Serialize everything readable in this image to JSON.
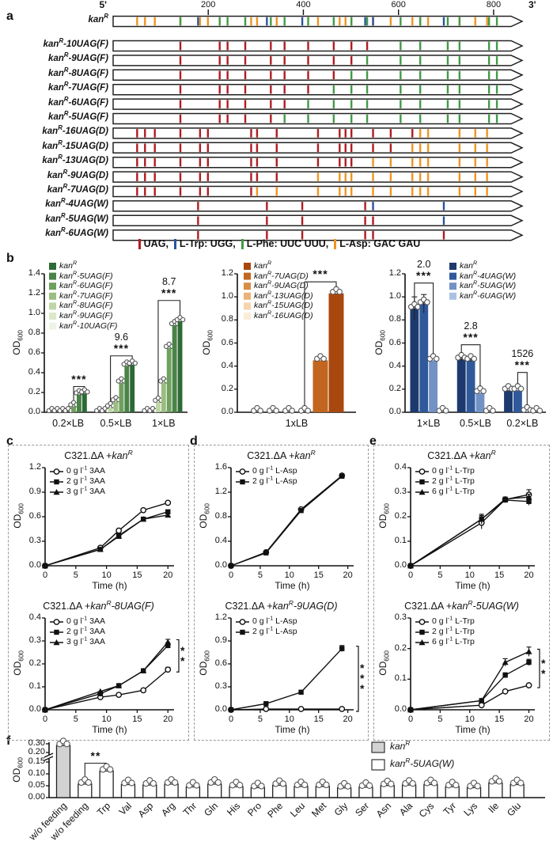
{
  "panels": {
    "a": "a",
    "b": "b",
    "c": "c",
    "d": "d",
    "e": "e",
    "f": "f"
  },
  "panel_a": {
    "ruler": {
      "five_prime": "5'",
      "three_prime": "3'",
      "ticks": [
        200,
        400,
        600,
        800
      ],
      "length": 860
    },
    "legend_separator": ", ",
    "legend": [
      {
        "key": "uag",
        "label": "UAG"
      },
      {
        "key": "trp",
        "label": "L-Trp: UGG"
      },
      {
        "key": "phe",
        "label": "L-Phe: UUC UUU"
      },
      {
        "key": "asp",
        "label": "L-Asp: GAC GAU"
      }
    ],
    "colors": {
      "uag": "#b01b20",
      "trp": "#2a52a2",
      "phe": "#3f9b45",
      "asp": "#f0941f"
    },
    "phe_positions": [
      0.165,
      0.265,
      0.285,
      0.33,
      0.395,
      0.43,
      0.49,
      0.555,
      0.6,
      0.64,
      0.725,
      0.775,
      0.845,
      0.875,
      0.95,
      0.97
    ],
    "asp_positions": [
      0.055,
      0.075,
      0.1,
      0.165,
      0.215,
      0.235,
      0.345,
      0.36,
      0.41,
      0.515,
      0.57,
      0.585,
      0.6,
      0.655,
      0.7,
      0.755,
      0.775,
      0.795,
      0.875,
      0.915,
      0.945
    ],
    "trp_positions": [
      0.21,
      0.385,
      0.475,
      0.635,
      0.655,
      0.835
    ],
    "rows": [
      {
        "label": "*kan^R^*",
        "type": "wt",
        "n": 0
      },
      {
        "label": "*kan^R^-10UAG(F)*",
        "type": "F",
        "n": 10
      },
      {
        "label": "*kan^R^-9UAG(F)*",
        "type": "F",
        "n": 9
      },
      {
        "label": "*kan^R^-8UAG(F)*",
        "type": "F",
        "n": 8
      },
      {
        "label": "*kan^R^-7UAG(F)*",
        "type": "F",
        "n": 7
      },
      {
        "label": "*kan^R^-6UAG(F)*",
        "type": "F",
        "n": 6
      },
      {
        "label": "*kan^R^-5UAG(F)*",
        "type": "F",
        "n": 5
      },
      {
        "label": "*kan^R^-16UAG(D)*",
        "type": "D",
        "n": 16
      },
      {
        "label": "*kan^R^-15UAG(D)*",
        "type": "D",
        "n": 15
      },
      {
        "label": "*kan^R^-13UAG(D)*",
        "type": "D",
        "n": 13
      },
      {
        "label": "*kan^R^-9UAG(D)*",
        "type": "D",
        "n": 9
      },
      {
        "label": "*kan^R^-7UAG(D)*",
        "type": "D",
        "n": 7
      },
      {
        "label": "*kan^R^-4UAG(W)*",
        "type": "W",
        "n": 4
      },
      {
        "label": "*kan^R^-5UAG(W)*",
        "type": "W",
        "n": 5
      },
      {
        "label": "*kan^R^-6UAG(W)*",
        "type": "W",
        "n": 6
      }
    ]
  },
  "chart_data": [
    {
      "id": "b1",
      "type": "bar",
      "ylabel": "OD~600~",
      "yticks": [
        "0.0",
        "0.2",
        "0.4",
        "0.6",
        "0.8",
        "1.0",
        "1.2",
        "1.4"
      ],
      "categories": [
        "0.2×LB",
        "0.5×LB",
        "1×LB"
      ],
      "draw_reverse": true,
      "series": [
        {
          "name": "*kan^R^*",
          "color": "#2d6a34",
          "values": [
            0.19,
            0.48,
            0.92
          ]
        },
        {
          "name": "*kan^R^-5UAG(F)*",
          "color": "#4a8348",
          "values": [
            0.18,
            0.47,
            0.88
          ]
        },
        {
          "name": "*kan^R^-6UAG(F)*",
          "color": "#6fa05e",
          "values": [
            0.06,
            0.3,
            0.65
          ]
        },
        {
          "name": "*kan^R^-7UAG(F)*",
          "color": "#9abd80",
          "values": [
            0,
            0.11,
            0.3
          ]
        },
        {
          "name": "*kan^R^-8UAG(F)*",
          "color": "#bed6a7",
          "values": [
            0,
            0.05,
            0.105
          ]
        },
        {
          "name": "*kan^R^-9UAG(F)*",
          "color": "#dbe8ca",
          "values": [
            0,
            0,
            0
          ]
        },
        {
          "name": "*kan^R^-10UAG(F)*",
          "color": "#eef4e5",
          "values": [
            0,
            0,
            0
          ]
        }
      ],
      "annotations": [
        {
          "group": 0,
          "from": 4,
          "to": 6,
          "y": 0.26,
          "lines": [
            "***"
          ]
        },
        {
          "group": 1,
          "from": 2,
          "to": 6,
          "y": 0.57,
          "lines": [
            "9.6",
            "***"
          ]
        },
        {
          "group": 2,
          "from": 2,
          "to": 6,
          "y": 1.13,
          "lines": [
            "8.7",
            "***"
          ]
        }
      ]
    },
    {
      "id": "b2",
      "type": "bar",
      "ylabel": "OD~600~",
      "yticks": [
        "0.0",
        "0.2",
        "0.4",
        "0.6",
        "0.8",
        "1.0",
        "1.2"
      ],
      "categories": [
        "1xLB"
      ],
      "draw_reverse": true,
      "series": [
        {
          "name": "*kan^R^*",
          "color": "#a9480e",
          "values": [
            1.03
          ]
        },
        {
          "name": "*kan^R^-7UAG(D)*",
          "color": "#c2661f",
          "values": [
            0.45
          ]
        },
        {
          "name": "*kan^R^-9UAG(D)*",
          "color": "#d88c46",
          "values": [
            0
          ]
        },
        {
          "name": "*kan^R^-13UAG(D)*",
          "color": "#eab279",
          "values": [
            0
          ]
        },
        {
          "name": "*kan^R^-15UAG(D)*",
          "color": "#f6d4ad",
          "values": [
            0
          ]
        },
        {
          "name": "*kan^R^-16UAG(D)*",
          "color": "#fbecd9",
          "values": [
            0
          ]
        }
      ],
      "annotations": [
        {
          "group": 0,
          "from": 3,
          "to": 5,
          "y": 1.13,
          "lines": [
            "***"
          ]
        }
      ]
    },
    {
      "id": "b3",
      "type": "bar",
      "ylabel": "OD~600~",
      "yticks": [
        "0.0",
        "0.2",
        "0.4",
        "0.6",
        "0.8",
        "1.0",
        "1.2"
      ],
      "categories": [
        "1×LB",
        "0.5×LB",
        "0.2×LB"
      ],
      "draw_reverse": false,
      "series": [
        {
          "name": "*kan^R^*",
          "color": "#1c3a6e",
          "values": [
            0.9,
            0.46,
            0.19
          ],
          "err": [
            0.1,
            0.015,
            0.008
          ]
        },
        {
          "name": "*kan^R^-4UAG(W)*",
          "color": "#30599c",
          "values": [
            0.94,
            0.45,
            0.19
          ],
          "err": [
            0.08,
            0.012,
            0.008
          ]
        },
        {
          "name": "*kan^R^-5UAG(W)*",
          "color": "#7292c5",
          "values": [
            0.45,
            0.17,
            0.007
          ]
        },
        {
          "name": "*kan^R^-6UAG(W)*",
          "color": "#a9c2e1",
          "values": [
            0,
            0,
            0
          ]
        }
      ],
      "annotations": [
        {
          "group": 0,
          "from": 0,
          "to": 2,
          "y": 1.12,
          "lines": [
            "2.0",
            "***"
          ]
        },
        {
          "group": 1,
          "from": 0,
          "to": 2,
          "y": 0.585,
          "lines": [
            "2.8",
            "***"
          ]
        },
        {
          "group": 2,
          "from": 1,
          "to": 2,
          "y": 0.345,
          "lines": [
            "1526",
            "***"
          ]
        }
      ]
    },
    {
      "id": "c1",
      "type": "line",
      "title": "C321.ΔA +*kan^R^*",
      "ylabel": "OD~600~",
      "xlabel": "Time (h)",
      "yticks": [
        "0.0",
        "0.3",
        "0.6",
        "0.9",
        "1.2"
      ],
      "xticks": [
        0,
        5,
        10,
        15,
        20
      ],
      "xmax": 21,
      "x": [
        0,
        9,
        12,
        16,
        20
      ],
      "series": [
        {
          "name": "0 g l^-1^ 3AA",
          "marker": "circle",
          "y": [
            0,
            0.22,
            0.43,
            0.68,
            0.77
          ],
          "err": [
            0,
            0,
            0.02,
            0.02,
            0.02
          ]
        },
        {
          "name": "2 g l^-1^ 3AA",
          "marker": "square",
          "y": [
            0,
            0.2,
            0.37,
            0.57,
            0.66
          ],
          "err": [
            0,
            0,
            0.02,
            0,
            0.02
          ]
        },
        {
          "name": "3 g l^-1^ 3AA",
          "marker": "triangle",
          "y": [
            0,
            0.2,
            0.36,
            0.57,
            0.62
          ],
          "err": [
            0,
            0,
            0.02,
            0,
            0.02
          ]
        }
      ]
    },
    {
      "id": "c2",
      "type": "line",
      "title": "C321.ΔA +*kan^R^-8UAG(F)*",
      "ylabel": "OD~600~",
      "xlabel": "Time (h)",
      "yticks": [
        "0.0",
        "0.1",
        "0.2",
        "0.3",
        "0.4"
      ],
      "xticks": [
        0,
        5,
        10,
        15,
        20
      ],
      "xmax": 21,
      "x": [
        0,
        9,
        12,
        16,
        20
      ],
      "sig": "**",
      "series": [
        {
          "name": "0 g l^-1^ 3AA",
          "marker": "circle",
          "y": [
            0,
            0.055,
            0.065,
            0.085,
            0.175
          ],
          "err": [
            0,
            0,
            0,
            0,
            0.01
          ]
        },
        {
          "name": "2 g l^-1^ 3AA",
          "marker": "square",
          "y": [
            0,
            0.07,
            0.105,
            0.17,
            0.28
          ],
          "err": [
            0,
            0,
            0,
            0,
            0.012
          ]
        },
        {
          "name": "3 g l^-1^ 3AA",
          "marker": "triangle",
          "y": [
            0,
            0.08,
            0.105,
            0.17,
            0.295
          ],
          "err": [
            0,
            0,
            0,
            0,
            0.012
          ]
        }
      ]
    },
    {
      "id": "d1",
      "type": "line",
      "title": "C321.ΔA +*kan^R^*",
      "ylabel": "OD~600~",
      "xlabel": "Time (h)",
      "yticks": [
        "0.0",
        "0.4",
        "0.8",
        "1.2",
        "1.6"
      ],
      "xticks": [
        0,
        5,
        10,
        15,
        20
      ],
      "xmax": 21,
      "x": [
        0,
        6,
        12,
        19
      ],
      "series": [
        {
          "name": "0 g l^-1^ L-Asp",
          "marker": "circle",
          "y": [
            0,
            0.22,
            0.92,
            1.47
          ],
          "err": [
            0,
            0,
            0.02,
            0.03
          ]
        },
        {
          "name": "2 g l^-1^ L-Asp",
          "marker": "square",
          "y": [
            0,
            0.21,
            0.9,
            1.46
          ],
          "err": [
            0,
            0,
            0.02,
            0.03
          ]
        }
      ]
    },
    {
      "id": "d2",
      "type": "line",
      "title": "C321.ΔA +*kan^R^-9UAG(D)*",
      "ylabel": "OD~600~",
      "xlabel": "Time (h)",
      "yticks": [
        "0.0",
        "0.3",
        "0.6",
        "0.9",
        "1.2"
      ],
      "xticks": [
        0,
        5,
        10,
        15,
        20
      ],
      "xmax": 21,
      "x": [
        0,
        6,
        12,
        19
      ],
      "sig": "***",
      "series": [
        {
          "name": "0 g l^-1^ L-Asp",
          "marker": "circle",
          "y": [
            0,
            0.01,
            0.01,
            0.01
          ]
        },
        {
          "name": "2 g l^-1^ L-Asp",
          "marker": "square",
          "y": [
            0,
            0.08,
            0.23,
            0.8
          ],
          "err": [
            0,
            0,
            0,
            0.04
          ]
        }
      ]
    },
    {
      "id": "e1",
      "type": "line",
      "title": "C321.ΔA +*kan^R^*",
      "ylabel": "OD~600~",
      "xlabel": "Time (h)",
      "yticks": [
        "0.0",
        "0.1",
        "0.2",
        "0.3",
        "0.4"
      ],
      "xticks": [
        0,
        5,
        10,
        15,
        20
      ],
      "xmax": 21,
      "x": [
        0,
        12,
        16,
        20
      ],
      "series": [
        {
          "name": "0 g l^-1^ L-Trp",
          "marker": "circle",
          "y": [
            0,
            0.175,
            0.27,
            0.29
          ],
          "err": [
            0,
            0.025,
            0.01,
            0.02
          ]
        },
        {
          "name": "2 g l^-1^ L-Trp",
          "marker": "square",
          "y": [
            0,
            0.19,
            0.268,
            0.262
          ],
          "err": [
            0,
            0.02,
            0.008,
            0.015
          ]
        },
        {
          "name": "6 g l^-1^ L-Trp",
          "marker": "triangle",
          "y": [
            0,
            0.19,
            0.272,
            0.28
          ],
          "err": [
            0,
            0.015,
            0.008,
            0.012
          ]
        }
      ]
    },
    {
      "id": "e2",
      "type": "line",
      "title": "C321.ΔA +*kan^R^-5UAG(W)*",
      "ylabel": "OD~600~",
      "xlabel": "Time (h)",
      "yticks": [
        "0.0",
        "0.1",
        "0.2",
        "0.3"
      ],
      "xticks": [
        0,
        5,
        10,
        15,
        20
      ],
      "xmax": 21,
      "x": [
        0,
        12,
        16,
        20
      ],
      "sig": "**",
      "series": [
        {
          "name": "0 g l^-1^ L-Trp",
          "marker": "circle",
          "y": [
            0,
            0.015,
            0.06,
            0.08
          ]
        },
        {
          "name": "2 g l^-1^ L-Trp",
          "marker": "square",
          "y": [
            0,
            0.03,
            0.113,
            0.155
          ],
          "err": [
            0,
            0,
            0.008,
            0.01
          ]
        },
        {
          "name": "6 g l^-1^ L-Trp",
          "marker": "triangle",
          "y": [
            0,
            0.03,
            0.155,
            0.19
          ],
          "err": [
            0,
            0.005,
            0.012,
            0.015
          ]
        }
      ]
    },
    {
      "id": "f",
      "type": "bar-broken",
      "ylabel": "OD~600~",
      "yticks_lower": [
        "0.00",
        "0.05",
        "0.10",
        "0.15"
      ],
      "yticks_upper": [
        "0.20",
        "0.30"
      ],
      "categories": [
        "w/o feeding",
        "w/o feeding",
        "Trp",
        "Val",
        "Asp",
        "Arg",
        "Thr",
        "Gln",
        "His",
        "Pro",
        "Phe",
        "Leu",
        "Met",
        "Gly",
        "Ser",
        "Asn",
        "Ala",
        "Cys",
        "Tyr",
        "Lys",
        "Ile",
        "Glu"
      ],
      "values": [
        0.28,
        0.057,
        0.112,
        0.055,
        0.053,
        0.057,
        0.045,
        0.057,
        0.046,
        0.042,
        0.052,
        0.047,
        0.047,
        0.041,
        0.044,
        0.051,
        0.053,
        0.055,
        0.046,
        0.042,
        0.062,
        0.055
      ],
      "gray": "#d2d2d2",
      "white": "#ffffff",
      "legend": [
        {
          "label": "*kan^R^*",
          "fill": "#d2d2d2"
        },
        {
          "label": "*kan^R^-5UAG(W)*",
          "fill": "#ffffff"
        }
      ],
      "annotation": {
        "from": 1,
        "to": 2,
        "y": 0.145,
        "lines": [
          "**"
        ]
      }
    }
  ]
}
